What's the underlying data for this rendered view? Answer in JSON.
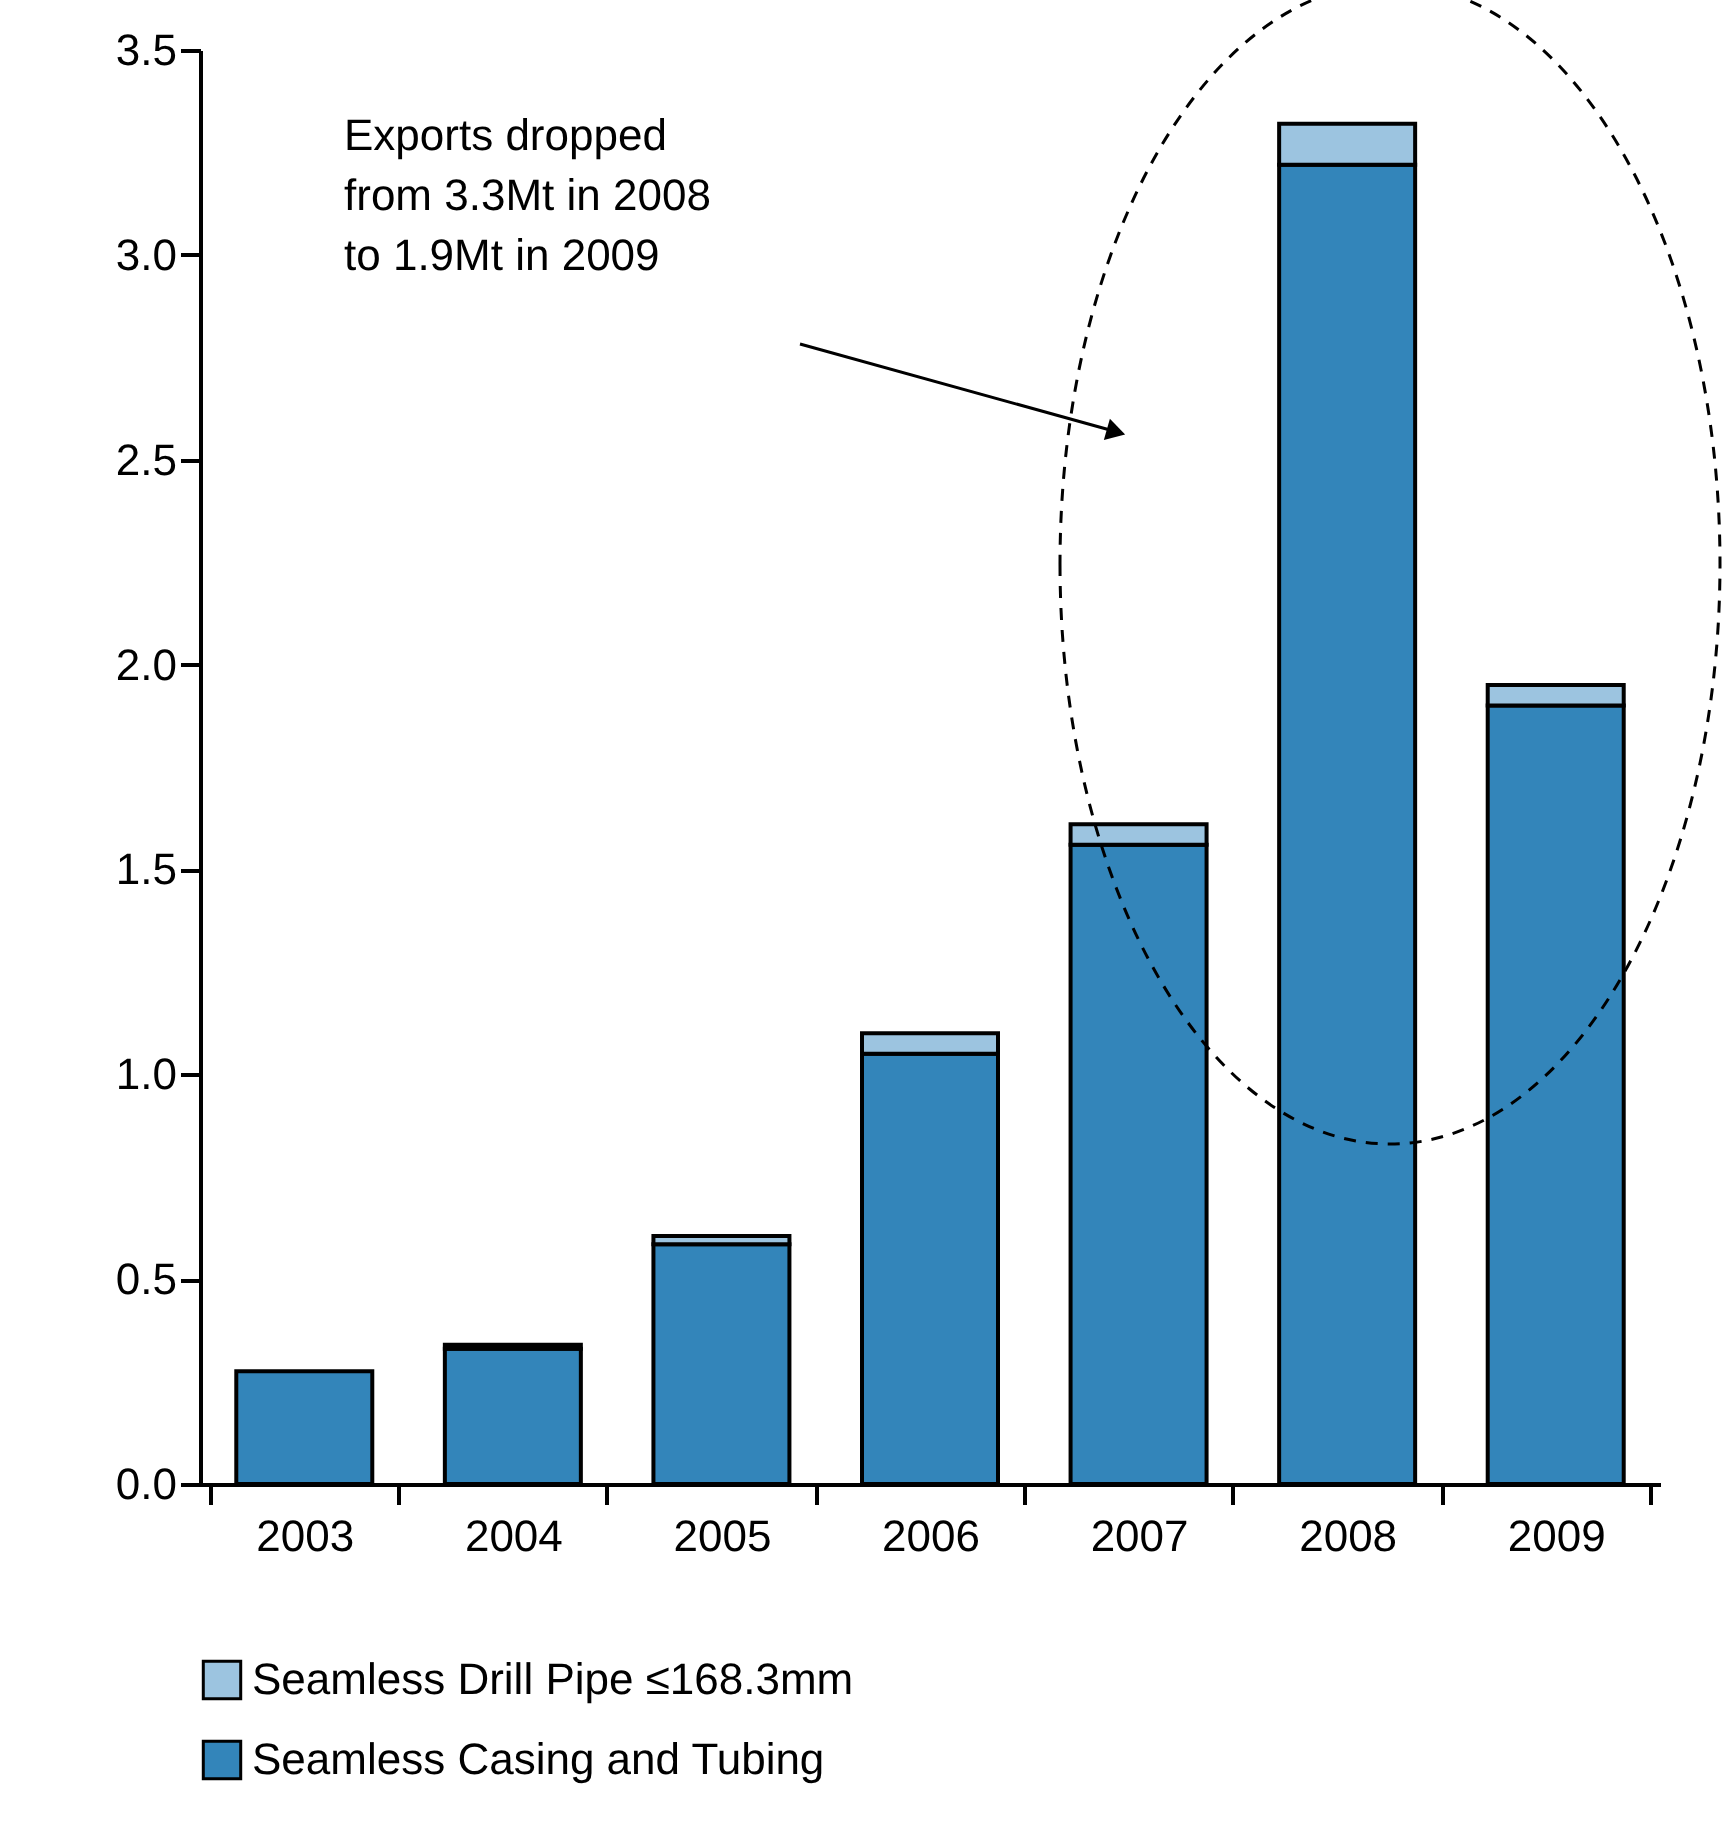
{
  "chart_data": {
    "type": "bar",
    "stacked": true,
    "categories": [
      "2003",
      "2004",
      "2005",
      "2006",
      "2007",
      "2008",
      "2009"
    ],
    "series": [
      {
        "name": "Seamless Casing and Tubing",
        "color": "#3385ba",
        "values": [
          0.275,
          0.33,
          0.585,
          1.05,
          1.56,
          3.22,
          1.9
        ]
      },
      {
        "name": "Seamless Drill Pipe ≤168.3mm",
        "color": "#9cc4e0",
        "values": [
          null,
          0.01,
          0.02,
          0.05,
          0.05,
          0.1,
          0.05
        ]
      }
    ],
    "ylim": [
      0,
      3.5
    ],
    "yticks": [
      {
        "value": 0,
        "label": "0.0"
      },
      {
        "value": 0.5,
        "label": "0.5"
      },
      {
        "value": 1,
        "label": "1.0"
      },
      {
        "value": 1.5,
        "label": "1.5"
      },
      {
        "value": 2,
        "label": "2.0"
      },
      {
        "value": 2.5,
        "label": "2.5"
      },
      {
        "value": 3,
        "label": "3.0"
      },
      {
        "value": 3.5,
        "label": "3.5"
      }
    ],
    "annotations": [
      "Exports dropped\nfrom 3.3Mt in 2008\nto 1.9Mt in 2009"
    ],
    "grid": false,
    "legend": "bottom"
  }
}
